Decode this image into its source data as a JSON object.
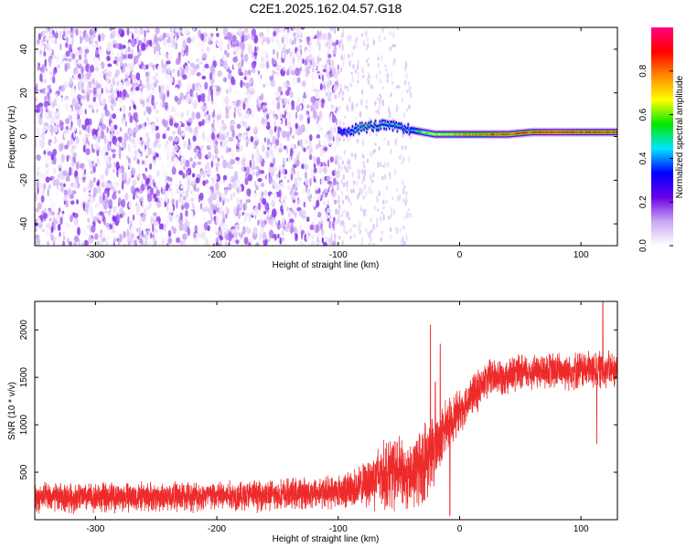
{
  "title": "C2E1.2025.162.04.57.G18",
  "chart_data": [
    {
      "type": "heatmap",
      "xlabel": "Height of straight line (km)",
      "ylabel": "Frequency (Hz)",
      "xlim": [
        -350,
        130
      ],
      "ylim": [
        -50,
        50
      ],
      "xticks": [
        -300,
        -200,
        -100,
        0,
        100
      ],
      "yticks": [
        -40,
        -20,
        0,
        20,
        40
      ],
      "colorbar": {
        "label": "Normalized spectral amplitude",
        "range": [
          0,
          1
        ],
        "ticks": [
          "0.0",
          "0.2",
          "0.4",
          "0.6",
          "0.8"
        ],
        "colors": [
          "#ffffff",
          "#c9a6f2",
          "#6a00e8",
          "#0000ff",
          "#00e5ff",
          "#00e600",
          "#ffff00",
          "#ff8a00",
          "#ff0000",
          "#ff007f"
        ]
      },
      "noise_region": {
        "x_range": [
          -350,
          -100
        ],
        "amplitude_range": [
          0.0,
          0.2
        ]
      },
      "sparse_noise_region": {
        "x_range": [
          -100,
          -40
        ]
      },
      "signal_track": [
        {
          "x": -100,
          "freq": 2,
          "amplitude": 0.35
        },
        {
          "x": -90,
          "freq": 3,
          "amplitude": 0.45
        },
        {
          "x": -80,
          "freq": 4,
          "amplitude": 0.55
        },
        {
          "x": -70,
          "freq": 5,
          "amplitude": 0.5
        },
        {
          "x": -60,
          "freq": 5,
          "amplitude": 0.5
        },
        {
          "x": -50,
          "freq": 4,
          "amplitude": 0.5
        },
        {
          "x": -40,
          "freq": 3,
          "amplitude": 0.45
        },
        {
          "x": -30,
          "freq": 2,
          "amplitude": 0.6
        },
        {
          "x": -20,
          "freq": 1,
          "amplitude": 0.7
        },
        {
          "x": -10,
          "freq": 1,
          "amplitude": 0.7
        },
        {
          "x": 0,
          "freq": 1,
          "amplitude": 0.75
        },
        {
          "x": 20,
          "freq": 1,
          "amplitude": 0.8
        },
        {
          "x": 40,
          "freq": 1,
          "amplitude": 0.85
        },
        {
          "x": 60,
          "freq": 2,
          "amplitude": 0.85
        },
        {
          "x": 80,
          "freq": 2,
          "amplitude": 0.9
        },
        {
          "x": 100,
          "freq": 2,
          "amplitude": 0.85
        },
        {
          "x": 130,
          "freq": 2,
          "amplitude": 0.85
        }
      ]
    },
    {
      "type": "line",
      "xlabel": "Height of straight line (km)",
      "ylabel": "SNR (10 * v/v)",
      "xlim": [
        -350,
        130
      ],
      "ylim": [
        0,
        2300
      ],
      "xticks": [
        -300,
        -200,
        -100,
        0,
        100
      ],
      "yticks": [
        500,
        1000,
        1500,
        2000
      ],
      "series": [
        {
          "color": "#ee2b2b",
          "envelope": [
            {
              "x": -350,
              "mean": 230,
              "spread": 180
            },
            {
              "x": -250,
              "mean": 240,
              "spread": 180
            },
            {
              "x": -150,
              "mean": 260,
              "spread": 190
            },
            {
              "x": -100,
              "mean": 300,
              "spread": 200
            },
            {
              "x": -80,
              "mean": 350,
              "spread": 260
            },
            {
              "x": -70,
              "mean": 450,
              "spread": 380
            },
            {
              "x": -55,
              "mean": 500,
              "spread": 450
            },
            {
              "x": -40,
              "mean": 450,
              "spread": 400
            },
            {
              "x": -30,
              "mean": 600,
              "spread": 500
            },
            {
              "x": -20,
              "mean": 750,
              "spread": 420
            },
            {
              "x": -10,
              "mean": 1000,
              "spread": 300
            },
            {
              "x": 0,
              "mean": 1150,
              "spread": 260
            },
            {
              "x": 10,
              "mean": 1300,
              "spread": 250
            },
            {
              "x": 25,
              "mean": 1500,
              "spread": 230
            },
            {
              "x": 60,
              "mean": 1560,
              "spread": 220
            },
            {
              "x": 100,
              "mean": 1580,
              "spread": 230
            },
            {
              "x": 130,
              "mean": 1580,
              "spread": 220
            }
          ],
          "spikes": [
            {
              "x": -24,
              "value": 2050
            },
            {
              "x": -20,
              "value": 1450
            },
            {
              "x": -16,
              "value": 1850
            },
            {
              "x": 118,
              "value": 2300
            },
            {
              "x": 113,
              "value": 800
            },
            {
              "x": -8,
              "value": 40
            }
          ]
        }
      ]
    }
  ]
}
